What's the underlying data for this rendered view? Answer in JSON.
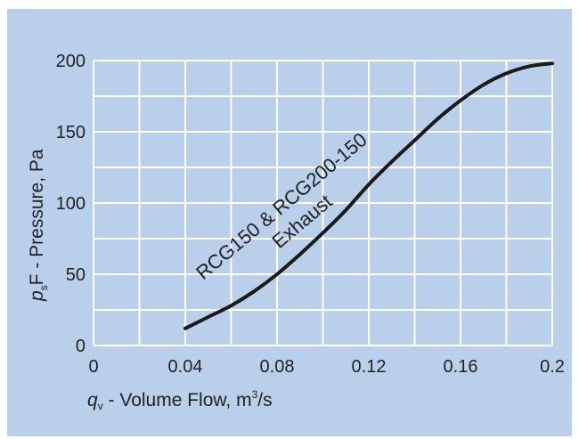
{
  "chart_data": {
    "type": "line",
    "title": "",
    "xlabel": {
      "symbol": "q",
      "subscript": "v",
      "text": " - Volume Flow, m",
      "superscript": "3",
      "suffix": "/s"
    },
    "ylabel": {
      "symbol": "p",
      "subscript": "s",
      "text": "F - Pressure, Pa"
    },
    "xlim": [
      0,
      0.2
    ],
    "ylim": [
      0,
      200
    ],
    "xticks": [
      0,
      0.04,
      0.08,
      0.12,
      0.16,
      0.2
    ],
    "xtick_labels": [
      "0",
      "0.04",
      "0.08",
      "0.12",
      "0.16",
      "0.2"
    ],
    "yticks": [
      0,
      50,
      100,
      150,
      200
    ],
    "ytick_labels": [
      "0",
      "50",
      "100",
      "150",
      "200"
    ],
    "xgrid_step": 0.02,
    "ygrid_step": 25,
    "grid": true,
    "colors": {
      "background": "#b9cfea",
      "grid": "#ffffff",
      "line": "#1a1a1a"
    },
    "series": [
      {
        "label_lines": [
          "RCG150 & RCG200-150",
          "Exhaust"
        ],
        "x": [
          0.04,
          0.05,
          0.06,
          0.07,
          0.08,
          0.09,
          0.1,
          0.11,
          0.12,
          0.13,
          0.14,
          0.15,
          0.16,
          0.17,
          0.18,
          0.19,
          0.2
        ],
        "y": [
          12,
          20,
          28,
          38,
          50,
          64,
          79,
          95,
          113,
          129,
          144,
          159,
          172,
          183,
          191,
          196,
          198
        ]
      }
    ]
  }
}
